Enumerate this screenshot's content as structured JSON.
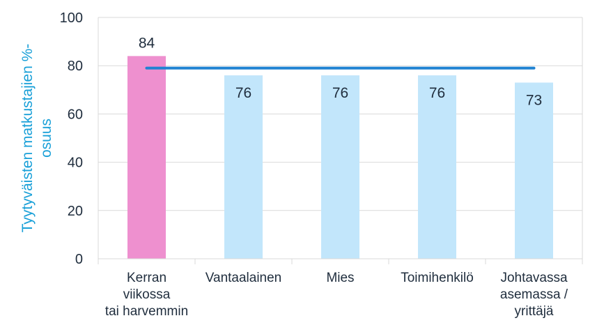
{
  "chart_data": {
    "type": "bar",
    "categories": [
      [
        "Kerran",
        "viikossa",
        "tai harvemmin"
      ],
      [
        "Vantaalainen"
      ],
      [
        "Mies"
      ],
      [
        "Toimihenkilö"
      ],
      [
        "Johtavassa",
        "asemassa /",
        "yrittäjä"
      ]
    ],
    "values": [
      84,
      76,
      76,
      76,
      73
    ],
    "data_labels": [
      "84",
      "76",
      "76",
      "76",
      "73"
    ],
    "bar_colors": [
      "#ee90cf",
      "#c2e6fb",
      "#c2e6fb",
      "#c2e6fb",
      "#c2e6fb"
    ],
    "reference_line": {
      "value": 79,
      "color": "#1f82d2"
    },
    "ylabel_lines": [
      "Tyytyväisten matkustajien %-",
      "osuus"
    ],
    "ylabel_color": "#1aa0d8",
    "ylim": [
      0,
      100
    ],
    "yticks": [
      0,
      20,
      40,
      60,
      80,
      100
    ],
    "grid": true,
    "grid_color": "#d9d9d9"
  }
}
